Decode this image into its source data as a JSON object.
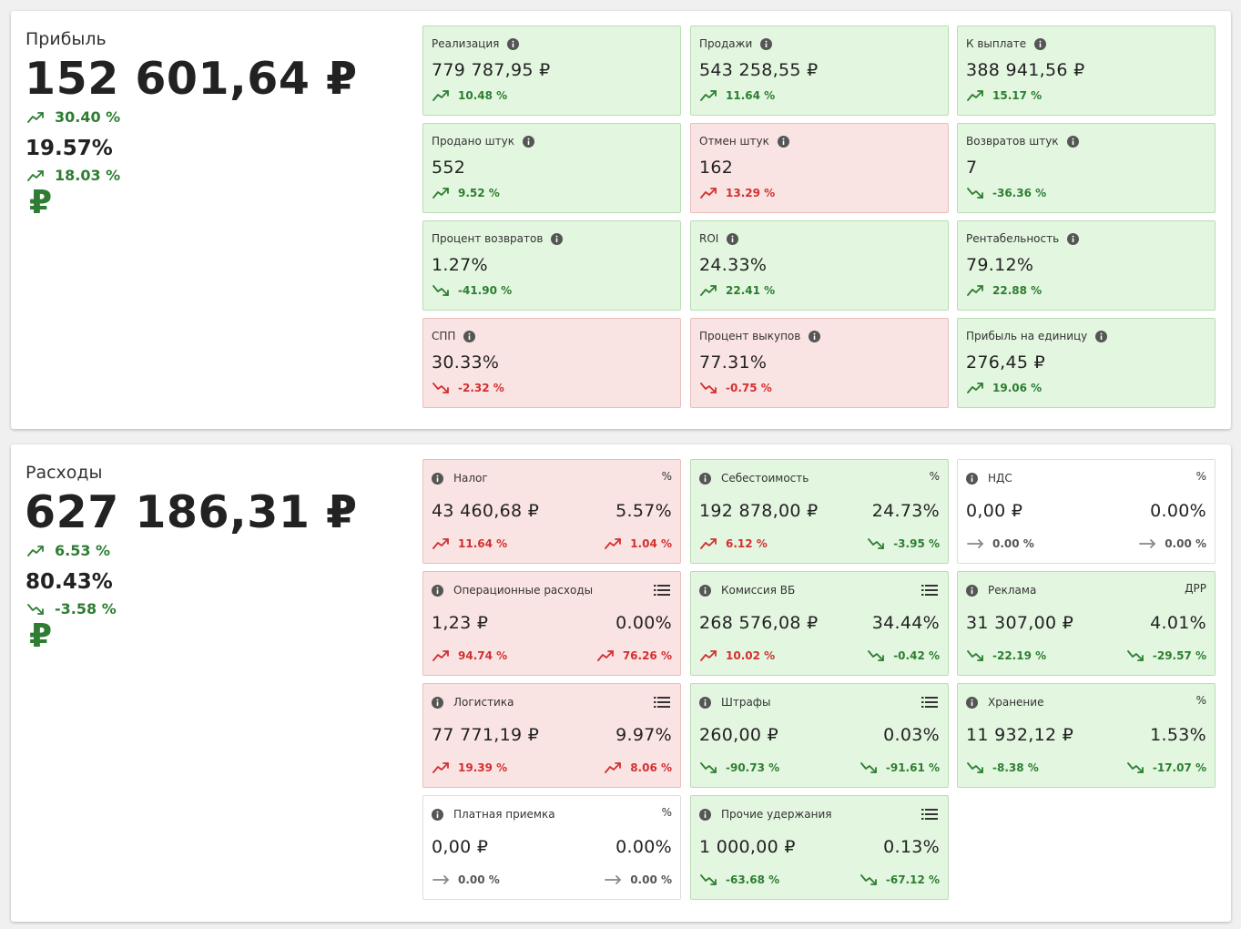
{
  "profit": {
    "title": "Прибыль",
    "value": "152 601,64 ₽",
    "change": {
      "text": "30.40 %",
      "trend": "up",
      "tone": "good"
    },
    "percent": "19.57%",
    "percent_change": {
      "text": "18.03 %",
      "trend": "up",
      "tone": "good"
    },
    "currency": "₽",
    "cards": [
      {
        "label": "Реализация",
        "value": "779 787,95 ₽",
        "status": "good",
        "change": {
          "text": "10.48 %",
          "trend": "up",
          "tone": "good"
        }
      },
      {
        "label": "Продажи",
        "value": "543 258,55 ₽",
        "status": "good",
        "change": {
          "text": "11.64 %",
          "trend": "up",
          "tone": "good"
        }
      },
      {
        "label": "К выплате",
        "value": "388 941,56 ₽",
        "status": "good",
        "change": {
          "text": "15.17 %",
          "trend": "up",
          "tone": "good"
        }
      },
      {
        "label": "Продано штук",
        "value": "552",
        "status": "good",
        "change": {
          "text": "9.52 %",
          "trend": "up",
          "tone": "good"
        }
      },
      {
        "label": "Отмен штук",
        "value": "162",
        "status": "bad",
        "change": {
          "text": "13.29 %",
          "trend": "up",
          "tone": "bad"
        }
      },
      {
        "label": "Возвратов штук",
        "value": "7",
        "status": "good",
        "change": {
          "text": "-36.36 %",
          "trend": "down",
          "tone": "good"
        }
      },
      {
        "label": "Процент возвратов",
        "value": "1.27%",
        "status": "good",
        "change": {
          "text": "-41.90 %",
          "trend": "down",
          "tone": "good"
        }
      },
      {
        "label": "ROI",
        "value": "24.33%",
        "status": "good",
        "change": {
          "text": "22.41 %",
          "trend": "up",
          "tone": "good"
        }
      },
      {
        "label": "Рентабельность",
        "value": "79.12%",
        "status": "good",
        "change": {
          "text": "22.88 %",
          "trend": "up",
          "tone": "good"
        }
      },
      {
        "label": "СПП",
        "value": "30.33%",
        "status": "bad",
        "change": {
          "text": "-2.32 %",
          "trend": "down",
          "tone": "bad"
        }
      },
      {
        "label": "Процент выкупов",
        "value": "77.31%",
        "status": "bad",
        "change": {
          "text": "-0.75 %",
          "trend": "down",
          "tone": "bad"
        }
      },
      {
        "label": "Прибыль на единицу",
        "value": "276,45 ₽",
        "status": "good",
        "change": {
          "text": "19.06 %",
          "trend": "up",
          "tone": "good"
        }
      }
    ]
  },
  "expenses": {
    "title": "Расходы",
    "value": "627 186,31 ₽",
    "change": {
      "text": "6.53 %",
      "trend": "up",
      "tone": "good"
    },
    "percent": "80.43%",
    "percent_change": {
      "text": "-3.58 %",
      "trend": "down",
      "tone": "good"
    },
    "currency": "₽",
    "cards": [
      {
        "label": "Налог",
        "corner": "%",
        "value": "43 460,68 ₽",
        "share": "5.57%",
        "status": "bad",
        "change": {
          "text": "11.64 %",
          "trend": "up",
          "tone": "bad"
        },
        "share_change": {
          "text": "1.04 %",
          "trend": "up",
          "tone": "bad"
        }
      },
      {
        "label": "Себестоимость",
        "corner": "%",
        "value": "192 878,00 ₽",
        "share": "24.73%",
        "status": "good",
        "change": {
          "text": "6.12 %",
          "trend": "up",
          "tone": "bad"
        },
        "share_change": {
          "text": "-3.95 %",
          "trend": "down",
          "tone": "good"
        }
      },
      {
        "label": "НДС",
        "corner": "%",
        "value": "0,00 ₽",
        "share": "0.00%",
        "status": "neutral",
        "change": {
          "text": "0.00 %",
          "trend": "flat",
          "tone": "neutral"
        },
        "share_change": {
          "text": "0.00 %",
          "trend": "flat",
          "tone": "neutral"
        }
      },
      {
        "label": "Операционные расходы",
        "corner_icon": "list",
        "value": "1,23 ₽",
        "share": "0.00%",
        "status": "bad",
        "change": {
          "text": "94.74 %",
          "trend": "up",
          "tone": "bad"
        },
        "share_change": {
          "text": "76.26 %",
          "trend": "up",
          "tone": "bad"
        }
      },
      {
        "label": "Комиссия ВБ",
        "corner_icon": "list",
        "value": "268 576,08 ₽",
        "share": "34.44%",
        "status": "good",
        "change": {
          "text": "10.02 %",
          "trend": "up",
          "tone": "bad"
        },
        "share_change": {
          "text": "-0.42 %",
          "trend": "down",
          "tone": "good"
        }
      },
      {
        "label": "Реклама",
        "corner": "ДРР",
        "value": "31 307,00 ₽",
        "share": "4.01%",
        "status": "good",
        "change": {
          "text": "-22.19 %",
          "trend": "down",
          "tone": "good"
        },
        "share_change": {
          "text": "-29.57 %",
          "trend": "down",
          "tone": "good"
        }
      },
      {
        "label": "Логистика",
        "corner_icon": "list",
        "value": "77 771,19 ₽",
        "share": "9.97%",
        "status": "bad",
        "change": {
          "text": "19.39 %",
          "trend": "up",
          "tone": "bad"
        },
        "share_change": {
          "text": "8.06 %",
          "trend": "up",
          "tone": "bad"
        }
      },
      {
        "label": "Штрафы",
        "corner_icon": "list",
        "value": "260,00 ₽",
        "share": "0.03%",
        "status": "good",
        "change": {
          "text": "-90.73 %",
          "trend": "down",
          "tone": "good"
        },
        "share_change": {
          "text": "-91.61 %",
          "trend": "down",
          "tone": "good"
        }
      },
      {
        "label": "Хранение",
        "corner": "%",
        "value": "11 932,12 ₽",
        "share": "1.53%",
        "status": "good",
        "change": {
          "text": "-8.38 %",
          "trend": "down",
          "tone": "good"
        },
        "share_change": {
          "text": "-17.07 %",
          "trend": "down",
          "tone": "good"
        }
      },
      {
        "label": "Платная приемка",
        "corner": "%",
        "value": "0,00 ₽",
        "share": "0.00%",
        "status": "neutral",
        "change": {
          "text": "0.00 %",
          "trend": "flat",
          "tone": "neutral"
        },
        "share_change": {
          "text": "0.00 %",
          "trend": "flat",
          "tone": "neutral"
        }
      },
      {
        "label": "Прочие удержания",
        "corner_icon": "list",
        "value": "1 000,00 ₽",
        "share": "0.13%",
        "status": "good",
        "change": {
          "text": "-63.68 %",
          "trend": "down",
          "tone": "good"
        },
        "share_change": {
          "text": "-67.12 %",
          "trend": "down",
          "tone": "good"
        }
      }
    ]
  }
}
